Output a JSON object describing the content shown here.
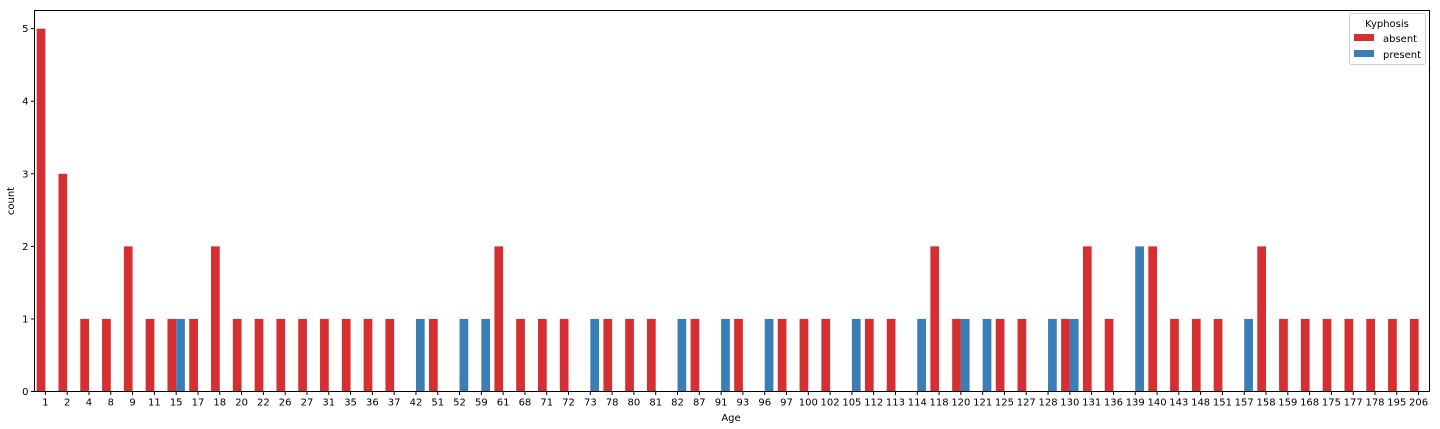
{
  "chart_data": {
    "type": "bar",
    "xlabel": "Age",
    "ylabel": "count",
    "ylim": [
      0,
      5.25
    ],
    "yticks": [
      0,
      1,
      2,
      3,
      4,
      5
    ],
    "grid": false,
    "legend": {
      "title": "Kyphosis",
      "position": "top-right"
    },
    "categories": [
      "1",
      "2",
      "4",
      "8",
      "9",
      "11",
      "15",
      "17",
      "18",
      "20",
      "22",
      "26",
      "27",
      "31",
      "35",
      "36",
      "37",
      "42",
      "51",
      "52",
      "59",
      "61",
      "68",
      "71",
      "72",
      "73",
      "78",
      "80",
      "81",
      "82",
      "87",
      "91",
      "93",
      "96",
      "97",
      "100",
      "102",
      "105",
      "112",
      "113",
      "114",
      "118",
      "120",
      "121",
      "125",
      "127",
      "128",
      "130",
      "131",
      "136",
      "139",
      "140",
      "143",
      "148",
      "151",
      "157",
      "158",
      "159",
      "168",
      "175",
      "177",
      "178",
      "195",
      "206"
    ],
    "series": [
      {
        "name": "absent",
        "color": "#d62f32",
        "values": [
          5,
          3,
          1,
          1,
          2,
          1,
          1,
          1,
          2,
          1,
          1,
          1,
          1,
          1,
          1,
          1,
          1,
          0,
          1,
          0,
          0,
          2,
          1,
          1,
          1,
          0,
          1,
          1,
          1,
          0,
          1,
          0,
          1,
          0,
          1,
          1,
          1,
          0,
          1,
          1,
          0,
          2,
          1,
          0,
          1,
          1,
          0,
          1,
          2,
          1,
          0,
          2,
          1,
          1,
          1,
          0,
          2,
          1,
          1,
          1,
          1,
          1,
          1,
          1
        ]
      },
      {
        "name": "present",
        "color": "#3a7db7",
        "values": [
          0,
          0,
          0,
          0,
          0,
          0,
          1,
          0,
          0,
          0,
          0,
          0,
          0,
          0,
          0,
          0,
          0,
          1,
          0,
          1,
          1,
          0,
          0,
          0,
          0,
          1,
          0,
          0,
          0,
          1,
          0,
          1,
          0,
          1,
          0,
          0,
          0,
          1,
          0,
          0,
          1,
          0,
          1,
          1,
          0,
          0,
          1,
          1,
          0,
          0,
          2,
          0,
          0,
          0,
          0,
          1,
          0,
          0,
          0,
          0,
          0,
          0,
          0,
          0
        ]
      }
    ]
  }
}
